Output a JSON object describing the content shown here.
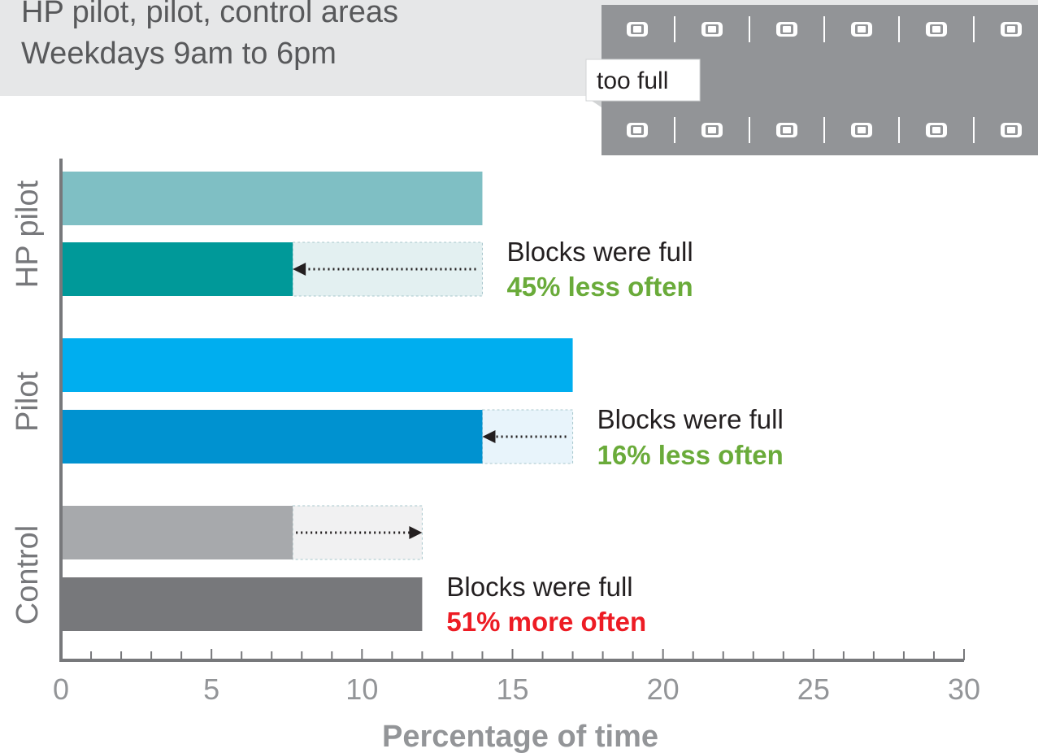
{
  "subtitle": {
    "line1": "HP pilot, pilot, control areas",
    "line2": "Weekdays 9am to 6pm"
  },
  "illustration": {
    "label": "too full",
    "colors": {
      "street": "#929497",
      "car": "#ffffff",
      "label_bg": "#ffffff"
    }
  },
  "chart_data": {
    "type": "bar",
    "orientation": "horizontal",
    "xlabel": "Percentage of time",
    "xlim": [
      0,
      30
    ],
    "xticks": [
      0,
      5,
      10,
      15,
      20,
      25,
      30
    ],
    "minor_tick_step": 1,
    "groups": [
      {
        "name": "HP pilot",
        "bars": [
          {
            "value": 14,
            "color": "#7fbfc4"
          },
          {
            "value": 7.7,
            "color": "#009999"
          }
        ],
        "change": {
          "from": 14,
          "to": 7.7,
          "direction": "decrease",
          "box_color": "#e3f0f1"
        },
        "annotation": {
          "line1": "Blocks were full",
          "line2": "45% less often",
          "line2_color": "#6aab3a"
        }
      },
      {
        "name": "Pilot",
        "bars": [
          {
            "value": 17,
            "color": "#00aeef"
          },
          {
            "value": 14,
            "color": "#0092d0"
          }
        ],
        "change": {
          "from": 17,
          "to": 14,
          "direction": "decrease",
          "box_color": "#e8f4fb"
        },
        "annotation": {
          "line1": "Blocks were full",
          "line2": "16% less often",
          "line2_color": "#6aab3a"
        }
      },
      {
        "name": "Control",
        "bars": [
          {
            "value": 7.7,
            "color": "#a7a9ac"
          },
          {
            "value": 12,
            "color": "#77787b"
          }
        ],
        "change": {
          "from": 7.7,
          "to": 12,
          "direction": "increase",
          "box_color": "#f1f1f2"
        },
        "annotation": {
          "line1": "Blocks were full",
          "line2": "51% more often",
          "line2_color": "#ed1c24"
        }
      }
    ],
    "axis_color": "#77787b",
    "tick_label_color": "#939598"
  }
}
